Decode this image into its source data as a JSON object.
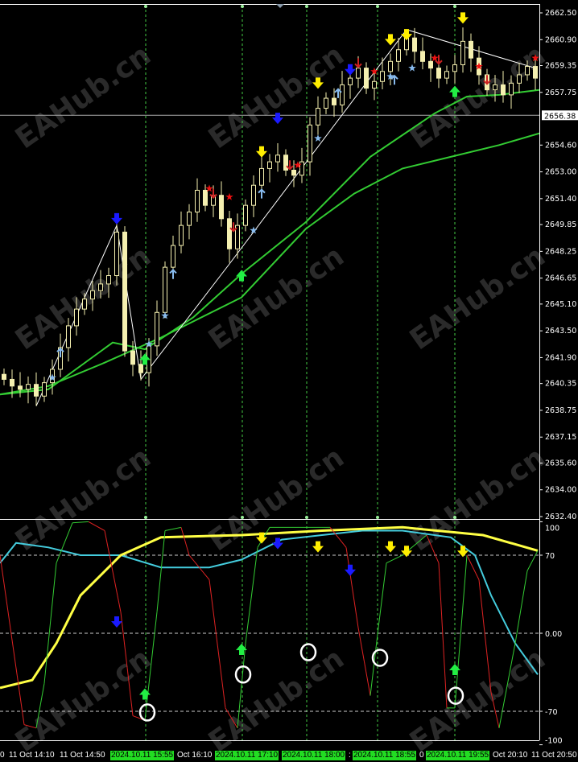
{
  "chart_data": {
    "type": "candlestick",
    "price_axis": {
      "range": [
        2632.4,
        2662.5
      ],
      "ticks": [
        "2662.50",
        "2660.90",
        "2659.35",
        "2657.75",
        "2654.60",
        "2653.00",
        "2651.40",
        "2649.85",
        "2648.25",
        "2646.65",
        "2645.10",
        "2643.50",
        "2641.90",
        "2640.35",
        "2638.75",
        "2637.15",
        "2635.60",
        "2634.00",
        "2632.40"
      ],
      "current_price": "2656.38"
    },
    "closes": [
      2640.6,
      2640.2,
      2640.0,
      2640.3,
      2639.6,
      2640.4,
      2641.2,
      2642.5,
      2643.8,
      2644.8,
      2645.4,
      2645.9,
      2646.3,
      2646.8,
      2649.4,
      2642.3,
      2641.5,
      2641.0,
      2642.6,
      2644.6,
      2647.3,
      2648.6,
      2649.8,
      2650.6,
      2651.9,
      2651.0,
      2651.6,
      2650.2,
      2648.4,
      2649.8,
      2651.0,
      2652.2,
      2653.2,
      2653.6,
      2654.0,
      2653.1,
      2652.8,
      2653.6,
      2655.8,
      2656.8,
      2657.4,
      2657.0,
      2658.2,
      2658.6,
      2659.2,
      2658.0,
      2658.4,
      2659.0,
      2659.6,
      2660.3,
      2661.0,
      2660.2,
      2659.6,
      2659.2,
      2658.6,
      2659.0,
      2659.4,
      2660.8,
      2659.8,
      2658.8,
      2657.9,
      2658.2,
      2657.6,
      2658.3,
      2658.8,
      2659.3,
      2658.6
    ],
    "ma_fast": [
      [
        -0.5,
        2639.7
      ],
      [
        5.5,
        2640.0
      ],
      [
        13.5,
        2642.8
      ],
      [
        17.5,
        2642.4
      ],
      [
        23.5,
        2644.3
      ],
      [
        29.5,
        2646.9
      ],
      [
        37.5,
        2650.0
      ],
      [
        45.5,
        2653.9
      ],
      [
        53.5,
        2656.5
      ],
      [
        57.5,
        2657.5
      ],
      [
        61.5,
        2657.6
      ],
      [
        66.5,
        2657.9
      ]
    ],
    "ma_slow": [
      [
        -0.5,
        2639.7
      ],
      [
        5.5,
        2640.2
      ],
      [
        12.5,
        2641.6
      ],
      [
        19.5,
        2643.1
      ],
      [
        29.5,
        2645.5
      ],
      [
        37.5,
        2649.6
      ],
      [
        43.5,
        2651.7
      ],
      [
        49.5,
        2653.2
      ],
      [
        55.5,
        2653.9
      ],
      [
        61.5,
        2654.6
      ],
      [
        66.5,
        2655.3
      ]
    ],
    "zigzag": [
      [
        4,
        2639.0
      ],
      [
        14,
        2649.8
      ],
      [
        17,
        2640.6
      ],
      [
        28,
        2647.5
      ],
      [
        50,
        2661.5
      ],
      [
        66,
        2659.2
      ]
    ],
    "price_signals": [
      {
        "kind": "big-down",
        "color": "#1a1aff",
        "i": 14,
        "p": 2650.1
      },
      {
        "kind": "big-down",
        "color": "#1a1aff",
        "i": 34,
        "p": 2656.1
      },
      {
        "kind": "big-down",
        "color": "#1a1aff",
        "i": 43,
        "p": 2659.0
      },
      {
        "kind": "big-down",
        "color": "#ffee00",
        "i": 32,
        "p": 2654.1
      },
      {
        "kind": "big-down",
        "color": "#ffee00",
        "i": 39,
        "p": 2658.2
      },
      {
        "kind": "big-down",
        "color": "#ffee00",
        "i": 48,
        "p": 2660.8
      },
      {
        "kind": "big-down",
        "color": "#ffee00",
        "i": 50,
        "p": 2661.1
      },
      {
        "kind": "big-down",
        "color": "#ffee00",
        "i": 57,
        "p": 2662.1
      },
      {
        "kind": "big-up",
        "color": "#22ee44",
        "i": 17.5,
        "p": 2641.9
      },
      {
        "kind": "big-up",
        "color": "#22ee44",
        "i": 29.5,
        "p": 2646.9
      },
      {
        "kind": "big-up",
        "color": "#22ee44",
        "i": 56,
        "p": 2657.9
      },
      {
        "kind": "small-up",
        "color": "#88bbee",
        "i": 7,
        "p": 2642.2
      },
      {
        "kind": "small-up",
        "color": "#88bbee",
        "i": 21,
        "p": 2646.9
      },
      {
        "kind": "small-up",
        "color": "#88bbee",
        "i": 32,
        "p": 2651.7
      },
      {
        "kind": "small-up",
        "color": "#88bbee",
        "i": 41.5,
        "p": 2657.7
      },
      {
        "kind": "small-up",
        "color": "#88bbee",
        "i": 48.5,
        "p": 2658.5
      },
      {
        "kind": "star",
        "color": "#88bbee",
        "i": 6,
        "p": 2640.7
      },
      {
        "kind": "star",
        "color": "#88bbee",
        "i": 18,
        "p": 2642.7
      },
      {
        "kind": "star",
        "color": "#88bbee",
        "i": 20,
        "p": 2644.4
      },
      {
        "kind": "star",
        "color": "#88bbee",
        "i": 31,
        "p": 2649.5
      },
      {
        "kind": "star",
        "color": "#88bbee",
        "i": 39,
        "p": 2655.0
      },
      {
        "kind": "star",
        "color": "#88bbee",
        "i": 48,
        "p": 2658.7
      },
      {
        "kind": "star",
        "color": "#88bbee",
        "i": 50.7,
        "p": 2659.2
      },
      {
        "kind": "star",
        "color": "#ee1111",
        "i": 25.5,
        "p": 2652.0
      },
      {
        "kind": "star",
        "color": "#ee1111",
        "i": 28,
        "p": 2651.5
      },
      {
        "kind": "star",
        "color": "#ee1111",
        "i": 36.5,
        "p": 2653.4
      },
      {
        "kind": "star",
        "color": "#ee1111",
        "i": 46,
        "p": 2659.0
      },
      {
        "kind": "star",
        "color": "#ee1111",
        "i": 53.5,
        "p": 2659.8
      },
      {
        "kind": "star",
        "color": "#ee1111",
        "i": 59,
        "p": 2659.3
      },
      {
        "kind": "star",
        "color": "#ee1111",
        "i": 66,
        "p": 2659.8
      },
      {
        "kind": "small-down",
        "color": "#cc2222",
        "i": 26,
        "p": 2651.7
      },
      {
        "kind": "small-down",
        "color": "#cc2222",
        "i": 28.5,
        "p": 2649.7
      },
      {
        "kind": "small-down",
        "color": "#cc2222",
        "i": 35.5,
        "p": 2653.4
      },
      {
        "kind": "small-down",
        "color": "#cc2222",
        "i": 44,
        "p": 2659.5
      },
      {
        "kind": "small-down",
        "color": "#cc2222",
        "i": 54,
        "p": 2659.7
      },
      {
        "kind": "small-down",
        "color": "#cc2222",
        "i": 60,
        "p": 2658.5
      }
    ],
    "oscillator": {
      "range": [
        -100,
        100
      ],
      "ticks": [
        "100",
        "70",
        "0.00",
        "-70",
        "-100"
      ],
      "levels": [
        70,
        0,
        -70
      ],
      "slow_line": {
        "color": "#ffff44",
        "points": [
          [
            -0.5,
            -49
          ],
          [
            3.5,
            -42
          ],
          [
            6.5,
            -9
          ],
          [
            9.5,
            34
          ],
          [
            14.5,
            70
          ],
          [
            19.5,
            86
          ],
          [
            29.5,
            88
          ],
          [
            39.5,
            92
          ],
          [
            49.5,
            95
          ],
          [
            59.5,
            88
          ],
          [
            66.3,
            74
          ]
        ]
      },
      "mid_line": {
        "color": "#44ccdd",
        "points": [
          [
            -0.5,
            63
          ],
          [
            1.5,
            81
          ],
          [
            5.5,
            77
          ],
          [
            9.5,
            70
          ],
          [
            14.5,
            70
          ],
          [
            19.5,
            59
          ],
          [
            25.5,
            59
          ],
          [
            29.5,
            66
          ],
          [
            34.5,
            84
          ],
          [
            39.5,
            88
          ],
          [
            44.5,
            92
          ],
          [
            49.5,
            92
          ],
          [
            55.5,
            86
          ],
          [
            58.5,
            70
          ],
          [
            60.5,
            34
          ],
          [
            63.5,
            -9
          ],
          [
            66.3,
            -37
          ]
        ]
      },
      "fast_line": {
        "up_color": "#33cc33",
        "down_color": "#dd2222",
        "points": [
          [
            -0.5,
            70
          ],
          [
            2.5,
            -82
          ],
          [
            4,
            -85
          ],
          [
            5,
            -45
          ],
          [
            6.5,
            63
          ],
          [
            8.5,
            99
          ],
          [
            10.5,
            100
          ],
          [
            12.5,
            92
          ],
          [
            14.5,
            19
          ],
          [
            16,
            -74
          ],
          [
            17.5,
            -78
          ],
          [
            19,
            19
          ],
          [
            20,
            92
          ],
          [
            22,
            95
          ],
          [
            23,
            70
          ],
          [
            25.5,
            48
          ],
          [
            27.5,
            -67
          ],
          [
            29,
            -85
          ],
          [
            30,
            -9
          ],
          [
            31.5,
            77
          ],
          [
            33,
            95
          ],
          [
            40.5,
            95
          ],
          [
            42.5,
            77
          ],
          [
            44,
            5
          ],
          [
            45.5,
            -56
          ],
          [
            46.5,
            5
          ],
          [
            47.5,
            63
          ],
          [
            49.5,
            70
          ],
          [
            52.5,
            88
          ],
          [
            54,
            63
          ],
          [
            55,
            -67
          ],
          [
            56,
            -67
          ],
          [
            57.5,
            70
          ],
          [
            59,
            48
          ],
          [
            60.5,
            -53
          ],
          [
            61.5,
            -85
          ],
          [
            63.5,
            -9
          ],
          [
            65,
            56
          ],
          [
            66.3,
            74
          ]
        ]
      },
      "signals": [
        {
          "kind": "big-down",
          "color": "#1a1aff",
          "i": 14,
          "v": 8.7
        },
        {
          "kind": "big-down",
          "color": "#1a1aff",
          "i": 34,
          "v": 79
        },
        {
          "kind": "big-down",
          "color": "#1a1aff",
          "i": 43,
          "v": 55
        },
        {
          "kind": "big-down",
          "color": "#ffee00",
          "i": 32,
          "v": 84
        },
        {
          "kind": "big-down",
          "color": "#ffee00",
          "i": 39,
          "v": 76
        },
        {
          "kind": "big-down",
          "color": "#ffee00",
          "i": 48,
          "v": 76
        },
        {
          "kind": "big-down",
          "color": "#ffee00",
          "i": 50,
          "v": 72
        },
        {
          "kind": "big-down",
          "color": "#ffee00",
          "i": 57,
          "v": 72
        },
        {
          "kind": "big-up",
          "color": "#22ee44",
          "i": 17.5,
          "v": -53
        },
        {
          "kind": "big-up",
          "color": "#22ee44",
          "i": 29.5,
          "v": -13
        },
        {
          "kind": "big-up",
          "color": "#22ee44",
          "i": 56,
          "v": -31
        },
        {
          "kind": "circle",
          "color": "#ffffff",
          "i": 17.8,
          "v": -71
        },
        {
          "kind": "circle",
          "color": "#ffffff",
          "i": 29.7,
          "v": -37
        },
        {
          "kind": "circle",
          "color": "#ffffff",
          "i": 37.8,
          "v": -17
        },
        {
          "kind": "circle",
          "color": "#ffffff",
          "i": 46.7,
          "v": -22
        },
        {
          "kind": "circle",
          "color": "#ffffff",
          "i": 56.1,
          "v": -56
        }
      ]
    },
    "signal_vlines": [
      17.6,
      29.6,
      37.6,
      46.4,
      56
    ],
    "time_axis": {
      "labels": [
        "0",
        "11 Oct 14:10",
        "11 Oct 14:50",
        "2024.10.11 15:55",
        "Oct 16:10",
        "2024.10.11 17:10",
        "2024.10.11 18:00",
        ":",
        "2024.10.11 18:55",
        "0",
        "2024.10.11 19:55",
        "Oct 20:10",
        "11 Oct 20:50"
      ]
    },
    "colors": {
      "background": "#000000",
      "candle": "#f5f0b0",
      "vline": "#44cc44"
    }
  },
  "watermark": "EAHub.cn"
}
